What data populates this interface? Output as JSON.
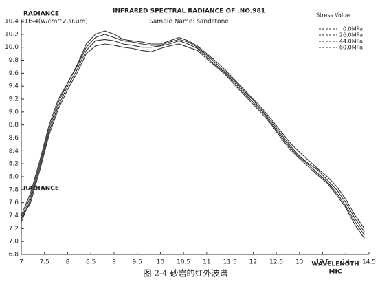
{
  "chart_data": {
    "type": "line",
    "title": "INFRARED SPECTRAL RADIANCE OF .NO.981",
    "subtitle": "Sample Name: sandstone",
    "y_label": "RADIANCE",
    "y_unit": "x1E-4(w/cm^2.sr.um)",
    "x_label": "WAVELENGTH",
    "x_unit": "MIC",
    "legend_title": "Stress Value",
    "caption": "图 2-4   砂岩的红外波谱",
    "xlim": [
      7,
      14.5
    ],
    "ylim": [
      6.8,
      10.4
    ],
    "xticks": [
      7,
      7.5,
      8,
      8.5,
      9,
      9.5,
      10,
      10.5,
      11,
      11.5,
      12,
      12.5,
      13,
      13.5,
      14,
      14.5
    ],
    "yticks": [
      {
        "value": 10.4,
        "label": "10.4"
      },
      {
        "value": 10.2,
        "label": "10.2"
      },
      {
        "value": 10,
        "label": "10.0"
      },
      9.8,
      9.6,
      9.4,
      9.2,
      {
        "value": 9,
        "label": "9.0"
      },
      8.8,
      8.6,
      8.4,
      8.2,
      {
        "value": 8,
        "label": "8.0"
      },
      7.8,
      7.6,
      7.4,
      7.2,
      {
        "value": 7,
        "label": "7.0"
      },
      6.8
    ],
    "x": [
      7.0,
      7.2,
      7.4,
      7.6,
      7.8,
      8.0,
      8.2,
      8.4,
      8.6,
      8.8,
      9.0,
      9.2,
      9.4,
      9.6,
      9.8,
      10.0,
      10.2,
      10.4,
      10.6,
      10.8,
      11.0,
      11.2,
      11.4,
      11.6,
      11.8,
      12.0,
      12.2,
      12.4,
      12.6,
      12.8,
      13.0,
      13.2,
      13.4,
      13.6,
      13.8,
      14.0,
      14.2,
      14.4
    ],
    "series": [
      {
        "name": "0.0MPa",
        "color": "#333333",
        "values": [
          7.35,
          7.7,
          8.2,
          8.75,
          9.15,
          9.45,
          9.7,
          10.0,
          10.15,
          10.2,
          10.15,
          10.1,
          10.08,
          10.05,
          10.03,
          10.03,
          10.08,
          10.12,
          10.08,
          10.0,
          9.88,
          9.75,
          9.62,
          9.48,
          9.33,
          9.18,
          9.02,
          8.85,
          8.66,
          8.48,
          8.32,
          8.2,
          8.1,
          7.95,
          7.8,
          7.6,
          7.35,
          7.15
        ]
      },
      {
        "name": "26.0MPa",
        "color": "#333333",
        "values": [
          7.4,
          7.75,
          8.25,
          8.8,
          9.2,
          9.45,
          9.72,
          10.05,
          10.2,
          10.25,
          10.2,
          10.12,
          10.1,
          10.08,
          10.05,
          10.05,
          10.1,
          10.15,
          10.1,
          10.02,
          9.9,
          9.78,
          9.65,
          9.5,
          9.35,
          9.2,
          9.05,
          8.88,
          8.7,
          8.52,
          8.38,
          8.25,
          8.12,
          8.0,
          7.85,
          7.65,
          7.4,
          7.2
        ]
      },
      {
        "name": "44.0MPa",
        "color": "#333333",
        "values": [
          7.3,
          7.65,
          8.15,
          8.7,
          9.1,
          9.4,
          9.65,
          9.95,
          10.1,
          10.12,
          10.1,
          10.05,
          10.03,
          10.0,
          10.0,
          10.02,
          10.05,
          10.1,
          10.05,
          9.98,
          9.85,
          9.72,
          9.6,
          9.45,
          9.3,
          9.15,
          9.0,
          8.82,
          8.63,
          8.45,
          8.3,
          8.18,
          8.05,
          7.92,
          7.75,
          7.55,
          7.3,
          7.1
        ]
      },
      {
        "name": "60.0MPa",
        "color": "#333333",
        "values": [
          7.35,
          7.6,
          8.1,
          8.65,
          9.05,
          9.35,
          9.6,
          9.9,
          10.02,
          10.05,
          10.03,
          10.0,
          9.98,
          9.95,
          9.93,
          9.98,
          10.02,
          10.05,
          10.0,
          9.95,
          9.82,
          9.7,
          9.58,
          9.42,
          9.27,
          9.12,
          8.97,
          8.8,
          8.6,
          8.42,
          8.28,
          8.15,
          8.02,
          7.9,
          7.72,
          7.52,
          7.25,
          7.05
        ]
      }
    ]
  }
}
